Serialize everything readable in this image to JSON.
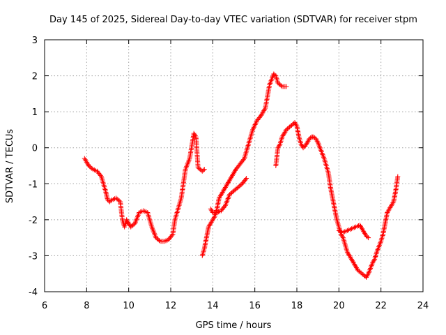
{
  "chart_data": {
    "type": "scatter",
    "title": "Day 145 of 2025, Sidereal Day-to-day VTEC variation (SDTVAR) for receiver stpm",
    "xlabel": "GPS time / hours",
    "ylabel": "SDTVAR / TECUs",
    "xlim": [
      6,
      24
    ],
    "ylim": [
      -4,
      3
    ],
    "x_ticks": [
      "6",
      "8",
      "10",
      "12",
      "14",
      "16",
      "18",
      "20",
      "22",
      "24"
    ],
    "y_ticks": [
      "-4",
      "-3",
      "-2",
      "-1",
      "0",
      "1",
      "2",
      "3"
    ],
    "grid": true,
    "marker": "+",
    "color": "#ff0000",
    "series": [
      {
        "name": "stpm",
        "x": [
          7.9,
          8.0,
          8.1,
          8.3,
          8.5,
          8.7,
          8.9,
          9.0,
          9.1,
          9.2,
          9.4,
          9.6,
          9.7,
          9.8,
          9.9,
          10.1,
          10.3,
          10.5,
          10.7,
          10.9,
          11.1,
          11.3,
          11.5,
          11.7,
          11.9,
          12.1,
          12.2,
          12.4,
          12.5,
          12.6,
          12.7,
          12.9,
          13.1,
          13.2,
          13.3,
          13.5,
          13.6
        ],
        "y": [
          -0.3,
          -0.4,
          -0.5,
          -0.6,
          -0.65,
          -0.8,
          -1.2,
          -1.45,
          -1.5,
          -1.45,
          -1.4,
          -1.5,
          -2.0,
          -2.2,
          -2.0,
          -2.2,
          -2.1,
          -1.8,
          -1.75,
          -1.8,
          -2.2,
          -2.5,
          -2.6,
          -2.6,
          -2.55,
          -2.4,
          -2.0,
          -1.6,
          -1.4,
          -1.0,
          -0.6,
          -0.3,
          0.4,
          0.3,
          -0.55,
          -0.65,
          -0.6
        ]
      },
      {
        "name": "stpm",
        "x": [
          13.5,
          13.6,
          13.7,
          13.8,
          13.9,
          14.0,
          14.1,
          14.2,
          14.3,
          14.4,
          14.5,
          14.7,
          14.9,
          15.1,
          15.3,
          15.5,
          15.7,
          15.9,
          16.1,
          16.3,
          16.5,
          16.7,
          16.8,
          16.9,
          17.0,
          17.1,
          17.3,
          17.5
        ],
        "y": [
          -3.0,
          -2.8,
          -2.5,
          -2.2,
          -2.1,
          -2.0,
          -1.9,
          -1.7,
          -1.4,
          -1.3,
          -1.2,
          -1.0,
          -0.8,
          -0.6,
          -0.45,
          -0.3,
          0.1,
          0.5,
          0.75,
          0.9,
          1.1,
          1.75,
          1.9,
          2.05,
          2.0,
          1.8,
          1.7,
          1.7
        ]
      },
      {
        "name": "stpm",
        "x": [
          13.9,
          14.0,
          14.2,
          14.4,
          14.6,
          14.8,
          15.0,
          15.2,
          15.4,
          15.6
        ],
        "y": [
          -1.7,
          -1.8,
          -1.8,
          -1.75,
          -1.6,
          -1.3,
          -1.2,
          -1.1,
          -1.0,
          -0.85
        ]
      },
      {
        "name": "stpm",
        "x": [
          17.0,
          17.1,
          17.2,
          17.3,
          17.5,
          17.7,
          17.9,
          18.0,
          18.1,
          18.2,
          18.3,
          18.4,
          18.5,
          18.6,
          18.7,
          18.8,
          18.9,
          19.0,
          19.1,
          19.3,
          19.4,
          19.5,
          19.6,
          19.7,
          19.8,
          19.9,
          20.0,
          20.1,
          20.2,
          20.3,
          20.4,
          20.5,
          20.6,
          20.7,
          20.8,
          20.9,
          21.0,
          21.1,
          21.2,
          21.3,
          21.4,
          21.5,
          21.6,
          21.7,
          21.8,
          21.9,
          22.0,
          22.1,
          22.2,
          22.3,
          22.4,
          22.5,
          22.6,
          22.7,
          22.8
        ],
        "y": [
          -0.5,
          0.0,
          0.1,
          0.3,
          0.5,
          0.6,
          0.7,
          0.6,
          0.3,
          0.1,
          0.0,
          0.05,
          0.15,
          0.25,
          0.3,
          0.3,
          0.25,
          0.15,
          0.0,
          -0.3,
          -0.5,
          -0.7,
          -1.1,
          -1.4,
          -1.7,
          -2.0,
          -2.2,
          -2.4,
          -2.5,
          -2.7,
          -2.9,
          -3.0,
          -3.1,
          -3.2,
          -3.3,
          -3.4,
          -3.45,
          -3.5,
          -3.55,
          -3.6,
          -3.5,
          -3.35,
          -3.2,
          -3.1,
          -2.9,
          -2.75,
          -2.6,
          -2.4,
          -2.1,
          -1.8,
          -1.7,
          -1.6,
          -1.5,
          -1.2,
          -0.8
        ]
      },
      {
        "name": "stpm",
        "x": [
          20.0,
          20.2,
          20.4,
          20.6,
          20.8,
          21.0,
          21.1,
          21.2,
          21.3,
          21.4
        ],
        "y": [
          -2.3,
          -2.35,
          -2.3,
          -2.25,
          -2.2,
          -2.15,
          -2.25,
          -2.35,
          -2.45,
          -2.5
        ]
      }
    ]
  }
}
